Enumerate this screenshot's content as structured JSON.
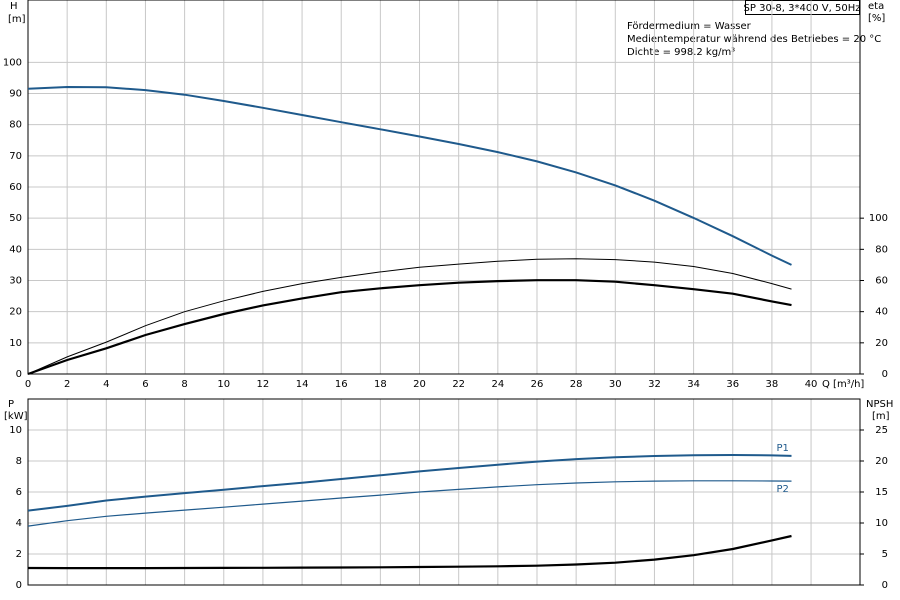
{
  "chart_data": [
    {
      "type": "line",
      "box_label": "SP 30-8, 3*400 V, 50Hz",
      "annotations": [
        "Fördermedium = Wasser",
        "Medientemperatur während des Betriebes = 20 °C",
        "Dichte = 998.2 kg/m³"
      ],
      "ylabel": "H",
      "yunit": "[m]",
      "y2label": "eta",
      "y2unit": "[%]",
      "xlabel": "Q [m³/h]",
      "x": [
        0,
        2,
        4,
        6,
        8,
        10,
        12,
        14,
        16,
        18,
        20,
        22,
        24,
        26,
        28,
        30,
        32,
        34,
        36,
        38,
        39
      ],
      "xlim": [
        0,
        42.5
      ],
      "xticks": [
        0,
        2,
        4,
        6,
        8,
        10,
        12,
        14,
        16,
        18,
        20,
        22,
        24,
        26,
        28,
        30,
        32,
        34,
        36,
        38,
        40
      ],
      "ylim": [
        0,
        120
      ],
      "yticks": [
        0,
        10,
        20,
        30,
        40,
        50,
        60,
        70,
        80,
        90,
        100
      ],
      "y2lim": [
        0,
        240
      ],
      "y2ticks": [
        0,
        20,
        40,
        60,
        80,
        100
      ],
      "grid": true,
      "series": [
        {
          "color": "#1f5a8c",
          "line_width": 2,
          "values": [
            91.5,
            92.1,
            92,
            91.1,
            89.6,
            87.6,
            85.4,
            83.1,
            80.8,
            78.5,
            76.2,
            73.8,
            71.2,
            68.2,
            64.7,
            60.5,
            55.6,
            50.1,
            44.2,
            38,
            35
          ]
        },
        {
          "color": "#000000",
          "line_width": 1,
          "axis": "y2",
          "values": [
            0,
            11,
            20.5,
            31,
            40,
            47,
            53,
            58,
            62,
            65.5,
            68.5,
            70.5,
            72.3,
            73.6,
            74,
            73.4,
            71.8,
            69,
            64.5,
            58,
            54.5
          ]
        },
        {
          "color": "#000000",
          "line_width": 2.2,
          "axis": "y2",
          "values": [
            0,
            9,
            16.5,
            25,
            32,
            38.5,
            44,
            48.5,
            52.5,
            55,
            57,
            58.6,
            59.6,
            60.2,
            60.2,
            59.2,
            57,
            54.4,
            51.5,
            46.6,
            44.2
          ]
        }
      ]
    },
    {
      "type": "line",
      "ylabel": "P",
      "yunit": "[kW]",
      "y2label": "NPSH",
      "y2unit": "[m]",
      "x": [
        0,
        2,
        4,
        6,
        8,
        10,
        12,
        14,
        16,
        18,
        20,
        22,
        24,
        26,
        28,
        30,
        32,
        34,
        36,
        38,
        39
      ],
      "xlim": [
        0,
        42.5
      ],
      "ylim": [
        0,
        12
      ],
      "yticks": [
        0,
        2,
        4,
        6,
        8,
        10
      ],
      "y2lim": [
        0,
        30
      ],
      "y2ticks": [
        0,
        5,
        10,
        15,
        20,
        25
      ],
      "grid": true,
      "series": [
        {
          "name": "P1",
          "color": "#1f5a8c",
          "line_width": 2,
          "values": [
            4.8,
            5.1,
            5.45,
            5.7,
            5.93,
            6.15,
            6.38,
            6.6,
            6.84,
            7.08,
            7.33,
            7.55,
            7.76,
            7.96,
            8.12,
            8.24,
            8.32,
            8.37,
            8.39,
            8.36,
            8.33
          ]
        },
        {
          "name": "P2",
          "color": "#1f5a8c",
          "line_width": 1.2,
          "values": [
            3.8,
            4.15,
            4.43,
            4.64,
            4.83,
            5.02,
            5.22,
            5.41,
            5.61,
            5.8,
            6,
            6.17,
            6.33,
            6.47,
            6.58,
            6.66,
            6.7,
            6.72,
            6.72,
            6.71,
            6.7
          ]
        },
        {
          "color": "#000000",
          "line_width": 2.2,
          "axis": "y2",
          "values": [
            2.75,
            2.72,
            2.72,
            2.73,
            2.74,
            2.76,
            2.78,
            2.8,
            2.83,
            2.86,
            2.9,
            2.95,
            3.02,
            3.12,
            3.3,
            3.6,
            4.1,
            4.8,
            5.8,
            7.2,
            7.9
          ]
        }
      ]
    }
  ]
}
